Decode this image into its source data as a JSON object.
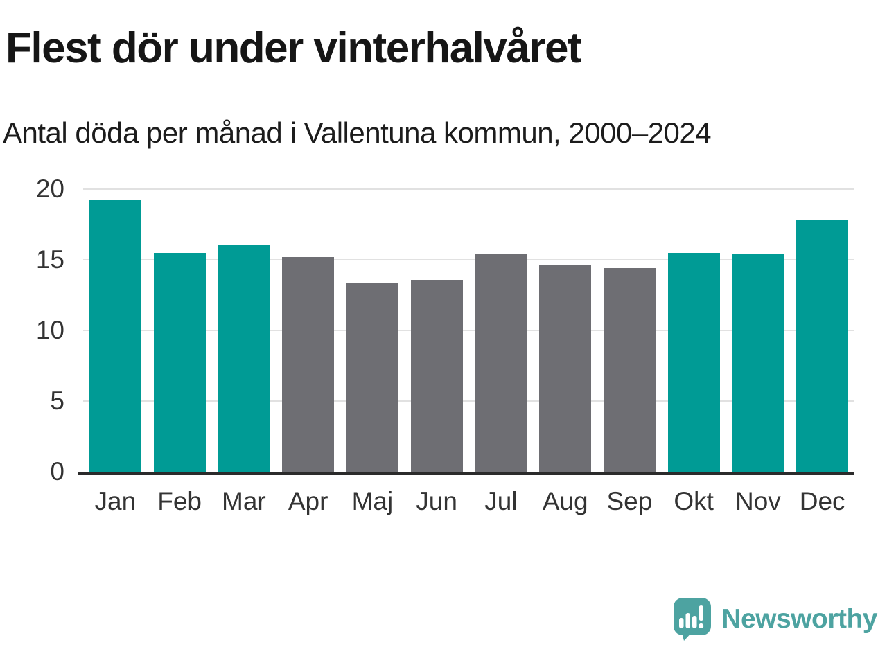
{
  "chart_data": {
    "type": "bar",
    "title": "Flest dör under vinterhalvåret",
    "subtitle": "Antal döda per månad i Vallentuna kommun, 2000–2024",
    "categories": [
      "Jan",
      "Feb",
      "Mar",
      "Apr",
      "Maj",
      "Jun",
      "Jul",
      "Aug",
      "Sep",
      "Okt",
      "Nov",
      "Dec"
    ],
    "values": [
      19.2,
      15.5,
      16.1,
      15.2,
      13.4,
      13.6,
      15.4,
      14.6,
      14.4,
      15.5,
      15.4,
      17.8
    ],
    "bar_groups": [
      "winter",
      "winter",
      "winter",
      "summer",
      "summer",
      "summer",
      "summer",
      "summer",
      "summer",
      "winter",
      "winter",
      "winter"
    ],
    "ylim": [
      0,
      20
    ],
    "yticks": [
      0,
      5,
      10,
      15,
      20
    ],
    "grid": true,
    "legend": "none",
    "colors": {
      "winter": "#009b95",
      "summer": "#6e6e73",
      "gridline": "#e1e1e1",
      "axis_line": "#2b2b2b",
      "tick_text": "#333333",
      "title_text": "#161616"
    }
  },
  "footer": {
    "brand": "Newsworthy",
    "brand_color": "#4da3a1",
    "logo_icon": "speech-bubble-with-bar-chart-and-exclamation"
  }
}
